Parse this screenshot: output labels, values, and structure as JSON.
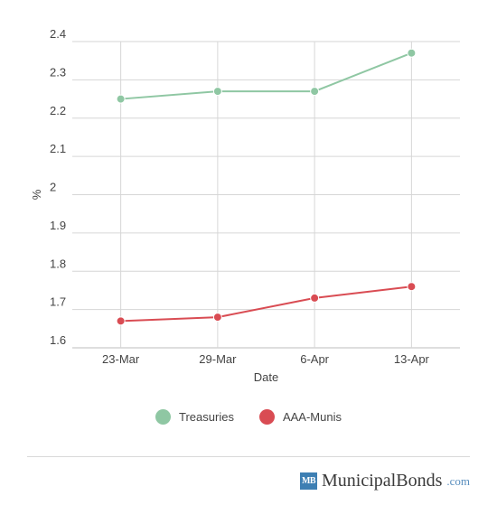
{
  "chart_data": {
    "type": "line",
    "categories": [
      "23-Mar",
      "29-Mar",
      "6-Apr",
      "13-Apr"
    ],
    "series": [
      {
        "name": "Treasuries",
        "values": [
          2.25,
          2.27,
          2.27,
          2.37
        ],
        "color": "#8fc7a3"
      },
      {
        "name": "AAA-Munis",
        "values": [
          1.67,
          1.68,
          1.73,
          1.76
        ],
        "color": "#d94c53"
      }
    ],
    "xlabel": "Date",
    "ylabel": "%",
    "ylim": [
      1.6,
      2.4
    ],
    "yticks": [
      "1.6",
      "1.7",
      "1.8",
      "1.9",
      "2",
      "2.1",
      "2.2",
      "2.3",
      "2.4"
    ],
    "grid": true,
    "legend_position": "bottom-center"
  },
  "brand": {
    "badge": "MB",
    "name": "MunicipalBonds",
    "tld": ".com"
  }
}
